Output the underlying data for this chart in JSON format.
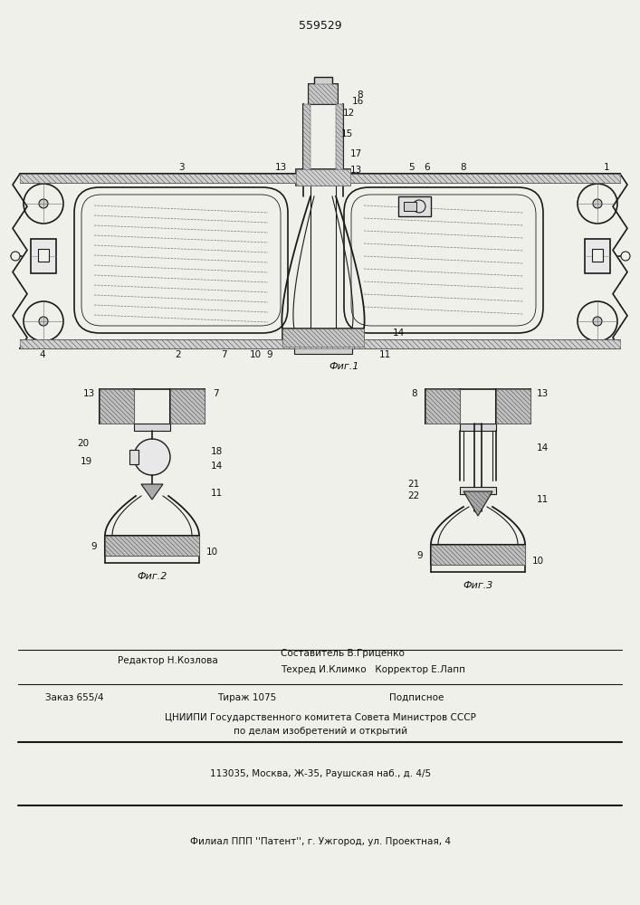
{
  "patent_number": "559529",
  "fig1_label": "Фиг.1",
  "fig2_label": "Фиг.2",
  "fig3_label": "Фиг.3",
  "bg_color": "#f0f0eb",
  "line_color": "#1a1a1a"
}
